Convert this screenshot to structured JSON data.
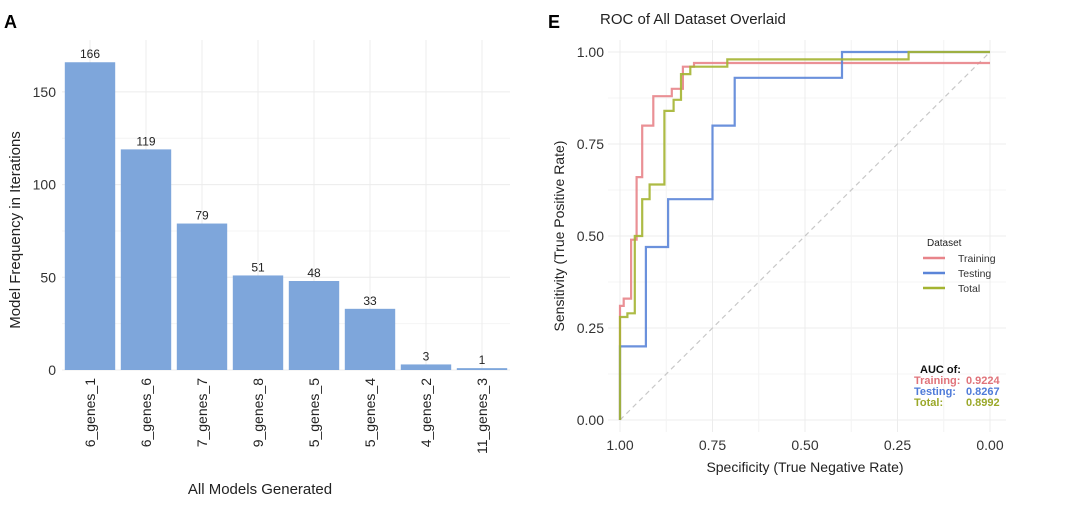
{
  "chart_data": [
    {
      "type": "bar",
      "panel_label": "A",
      "title": "",
      "categories": [
        "6_genes_1",
        "6_genes_6",
        "7_genes_7",
        "9_genes_8",
        "5_genes_5",
        "5_genes_4",
        "4_genes_2",
        "11_genes_3"
      ],
      "values": [
        166,
        119,
        79,
        51,
        48,
        33,
        3,
        1
      ],
      "data_labels": [
        "166",
        "119",
        "79",
        "51",
        "48",
        "33",
        "3",
        "1"
      ],
      "xlabel": "All Models Generated",
      "ylabel": "Model Frequency in Iterations",
      "ylim": [
        0,
        178
      ],
      "yticks": [
        0,
        50,
        100,
        150
      ],
      "ytick_labels": [
        "0",
        "50",
        "100",
        "150"
      ],
      "grid": true,
      "bar_color": "#7ea6db"
    },
    {
      "type": "line",
      "panel_label": "E",
      "title": "ROC of All Dataset Overlaid",
      "xlabel": "Specificity (True Negative Rate)",
      "ylabel": "Sensitivity (True Positive Rate)",
      "xlim": [
        1.0,
        0.0
      ],
      "ylim": [
        0.0,
        1.0
      ],
      "xticks": [
        1.0,
        0.75,
        0.5,
        0.25,
        0.0
      ],
      "xtick_labels": [
        "1.00",
        "0.75",
        "0.50",
        "0.25",
        "0.00"
      ],
      "yticks": [
        0.0,
        0.25,
        0.5,
        0.75,
        1.0
      ],
      "ytick_labels": [
        "0.00",
        "0.25",
        "0.50",
        "0.75",
        "1.00"
      ],
      "grid": true,
      "legend": {
        "title": "Dataset",
        "position": "right",
        "entries": [
          {
            "name": "Training",
            "color": "#e8848a"
          },
          {
            "name": "Testing",
            "color": "#5b85d8"
          },
          {
            "name": "Total",
            "color": "#a4b431"
          }
        ]
      },
      "reference_line": {
        "from": [
          1.0,
          0.0
        ],
        "to": [
          0.0,
          1.0
        ]
      },
      "auc": {
        "title": "AUC of:",
        "entries": [
          {
            "label": "Training:",
            "value": "0.9224",
            "color": "#e0737a"
          },
          {
            "label": "Testing:",
            "value": "0.8267",
            "color": "#4f7bd9"
          },
          {
            "label": "Total:",
            "value": "0.8992",
            "color": "#9aa829"
          }
        ]
      },
      "series": [
        {
          "name": "Training",
          "color": "#e8848a",
          "x": [
            1.0,
            1.0,
            0.99,
            0.99,
            0.97,
            0.97,
            0.955,
            0.955,
            0.94,
            0.94,
            0.91,
            0.91,
            0.86,
            0.86,
            0.83,
            0.83,
            0.8,
            0.8,
            0.0
          ],
          "y": [
            0.0,
            0.31,
            0.31,
            0.33,
            0.33,
            0.49,
            0.49,
            0.66,
            0.66,
            0.8,
            0.8,
            0.88,
            0.88,
            0.9,
            0.9,
            0.96,
            0.96,
            0.97,
            0.97
          ]
        },
        {
          "name": "Testing",
          "color": "#5b85d8",
          "x": [
            1.0,
            1.0,
            0.93,
            0.93,
            0.87,
            0.87,
            0.75,
            0.75,
            0.69,
            0.69,
            0.4,
            0.4,
            0.0
          ],
          "y": [
            0.0,
            0.2,
            0.2,
            0.47,
            0.47,
            0.6,
            0.6,
            0.8,
            0.8,
            0.93,
            0.93,
            1.0,
            1.0
          ]
        },
        {
          "name": "Total",
          "color": "#a4b431",
          "x": [
            1.0,
            1.0,
            0.98,
            0.98,
            0.96,
            0.96,
            0.94,
            0.94,
            0.92,
            0.92,
            0.88,
            0.88,
            0.855,
            0.855,
            0.835,
            0.835,
            0.81,
            0.81,
            0.71,
            0.71,
            0.22,
            0.22,
            0.0
          ],
          "y": [
            0.0,
            0.28,
            0.28,
            0.29,
            0.29,
            0.5,
            0.5,
            0.6,
            0.6,
            0.64,
            0.64,
            0.84,
            0.84,
            0.87,
            0.87,
            0.94,
            0.94,
            0.96,
            0.96,
            0.98,
            0.98,
            1.0,
            1.0
          ]
        }
      ]
    }
  ]
}
